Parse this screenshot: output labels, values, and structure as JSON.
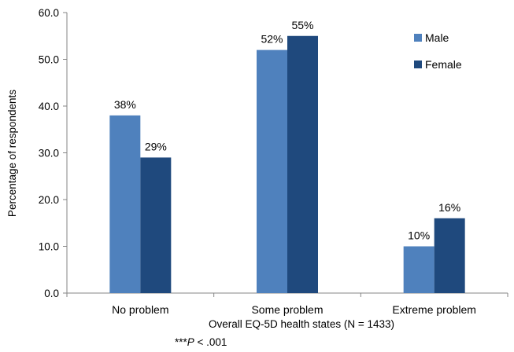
{
  "chart_data": {
    "type": "bar",
    "categories": [
      "No problem",
      "Some problem",
      "Extreme problem"
    ],
    "series": [
      {
        "name": "Male",
        "values": [
          38,
          52,
          10
        ],
        "labels": [
          "38%",
          "52%",
          "10%"
        ],
        "color": "#4f81bd"
      },
      {
        "name": "Female",
        "values": [
          29,
          55,
          16
        ],
        "labels": [
          "29%",
          "55%",
          "16%"
        ],
        "color": "#1f497d"
      }
    ],
    "title": "",
    "xlabel": "Overall EQ-5D health states (N = 1433)",
    "ylabel": "Percentage of  respondents",
    "ylim": [
      0,
      60
    ],
    "yticks": [
      "0.0",
      "10.0",
      "20.0",
      "30.0",
      "40.0",
      "50.0",
      "60.0"
    ],
    "grid": false,
    "legend": "top-right",
    "footnote": {
      "stars": "***",
      "p": "P",
      "rest": " < .001"
    }
  }
}
